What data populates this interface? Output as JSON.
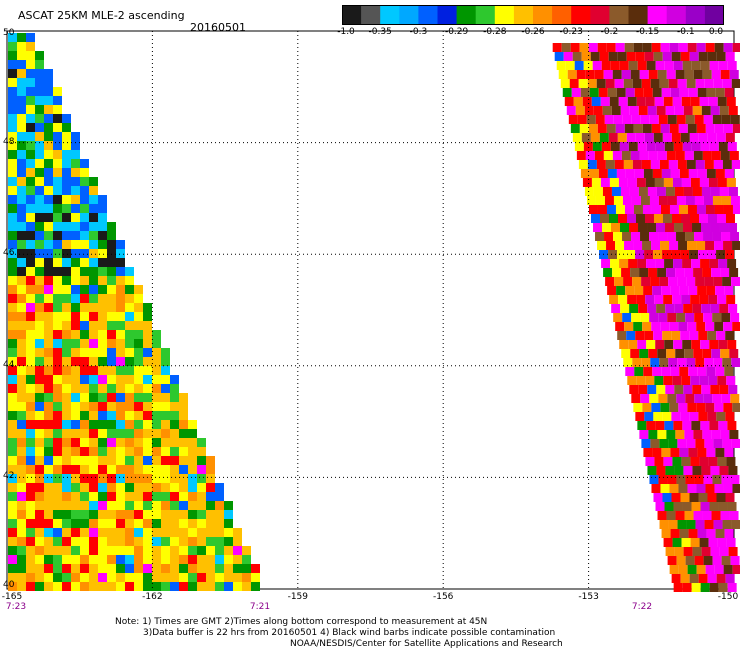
{
  "header": {
    "title": "ASCAT 25KM MLE-2 ascending",
    "date": "20160501"
  },
  "colorbar": {
    "colors": [
      "#1a1a1a",
      "#555555",
      "#00c8ff",
      "#00a8ff",
      "#0060ff",
      "#0020e0",
      "#009600",
      "#2ec82e",
      "#ffff00",
      "#ffc000",
      "#ff9000",
      "#ff6000",
      "#ff0000",
      "#e00030",
      "#8b5a2b",
      "#5a2d0c",
      "#ff00ff",
      "#d000e0",
      "#9a00c8",
      "#7000a0"
    ],
    "labels": [
      "-1.0",
      "-0.35",
      "-0.3",
      "-0.29",
      "-0.28",
      "-0.26",
      "-0.23",
      "-0.2",
      "-0.15",
      "-0.1",
      "0.0"
    ]
  },
  "map": {
    "y_ticks": [
      "50",
      "48",
      "46",
      "44",
      "42",
      "40"
    ],
    "x_ticks": [
      "-165",
      "-162",
      "-159",
      "-156",
      "-153",
      "-150"
    ],
    "times": [
      "7:23",
      "7:21",
      "7:22"
    ]
  },
  "footer": {
    "line1": "Note: 1) Times are GMT 2)Times along bottom correspond to measurement at 45N",
    "line2": "3)Data buffer is 22 hrs from 20160501 4) Black wind barbs indicate possible contamination",
    "line3": "NOAA/NESDIS/Center for Satellite Applications and Research"
  }
}
